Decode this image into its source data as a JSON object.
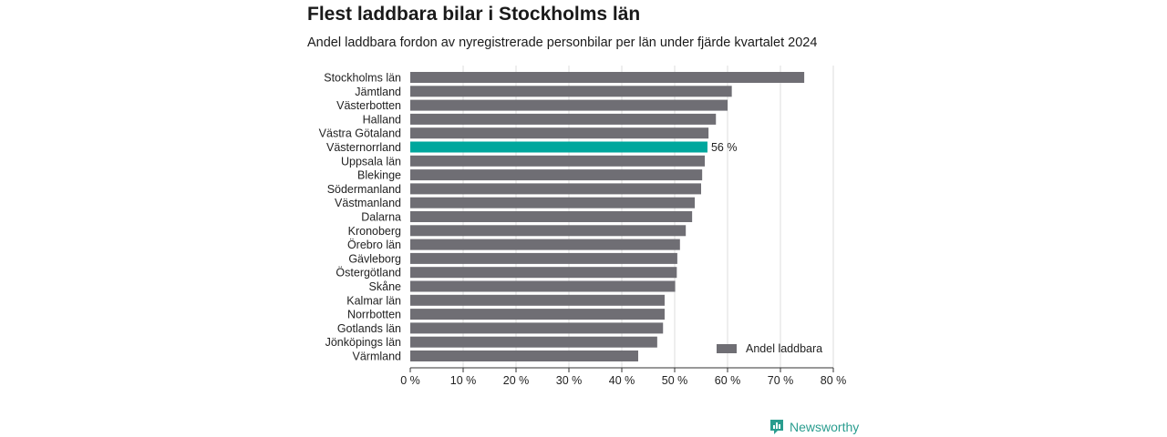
{
  "title": "Flest laddbara bilar i Stockholms län",
  "subtitle": "Andel laddbara fordon av nyregistrerade personbilar per län under fjärde kvartalet 2024",
  "brand": {
    "name": "Newsworthy",
    "color": "#2a9d8f"
  },
  "colors": {
    "bar": "#6f6e74",
    "highlight": "#00a79d",
    "grid": "#dcdcdc",
    "axis": "#333333"
  },
  "chart_data": {
    "type": "bar",
    "orientation": "horizontal",
    "categories": [
      "Stockholms län",
      "Jämtland",
      "Västerbotten",
      "Halland",
      "Västra Götaland",
      "Västernorrland",
      "Uppsala län",
      "Blekinge",
      "Södermanland",
      "Västmanland",
      "Dalarna",
      "Kronoberg",
      "Örebro län",
      "Gävleborg",
      "Östergötland",
      "Skåne",
      "Kalmar län",
      "Norrbotten",
      "Gotlands län",
      "Jönköpings län",
      "Värmland"
    ],
    "values": [
      74.5,
      60.8,
      60.0,
      57.8,
      56.4,
      56.2,
      55.7,
      55.2,
      55.0,
      53.8,
      53.3,
      52.1,
      51.0,
      50.5,
      50.4,
      50.1,
      48.1,
      48.1,
      47.8,
      46.7,
      43.1
    ],
    "highlight_index": 5,
    "highlight_label": "56 %",
    "xlim": [
      0,
      80
    ],
    "xticks": [
      0,
      10,
      20,
      30,
      40,
      50,
      60,
      70,
      80
    ],
    "xtick_labels": [
      "0 %",
      "10 %",
      "20 %",
      "30 %",
      "40 %",
      "50 %",
      "60 %",
      "70 %",
      "80 %"
    ],
    "legend": {
      "label": "Andel laddbara",
      "position": "bottom-right"
    },
    "grid": true
  }
}
